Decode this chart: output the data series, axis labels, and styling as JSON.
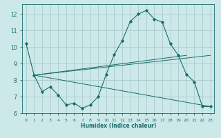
{
  "xlabel": "Humidex (Indice chaleur)",
  "background_color": "#cce8e8",
  "grid_color": "#aacccc",
  "line_color": "#1a6b6b",
  "xlim": [
    -0.5,
    23.5
  ],
  "ylim": [
    6.0,
    12.6
  ],
  "yticks": [
    6,
    7,
    8,
    9,
    10,
    11,
    12
  ],
  "xticks": [
    0,
    1,
    2,
    3,
    4,
    5,
    6,
    7,
    8,
    9,
    10,
    11,
    12,
    13,
    14,
    15,
    16,
    17,
    18,
    19,
    20,
    21,
    22,
    23
  ],
  "main_series": {
    "x": [
      0,
      1,
      2,
      3,
      4,
      5,
      6,
      7,
      8,
      9,
      10,
      11,
      12,
      13,
      14,
      15,
      16,
      17,
      18,
      19,
      20,
      21,
      22,
      23
    ],
    "y": [
      10.2,
      8.3,
      7.3,
      7.6,
      7.1,
      6.5,
      6.6,
      6.3,
      6.5,
      7.0,
      8.35,
      9.55,
      10.4,
      11.55,
      12.0,
      12.22,
      11.7,
      11.5,
      10.2,
      9.5,
      8.35,
      7.9,
      6.4,
      6.4
    ]
  },
  "straight_lines": [
    {
      "x": [
        1,
        23
      ],
      "y": [
        8.3,
        6.4
      ]
    },
    {
      "x": [
        1,
        20
      ],
      "y": [
        8.3,
        9.5
      ]
    },
    {
      "x": [
        1,
        23
      ],
      "y": [
        8.3,
        9.5
      ]
    }
  ]
}
